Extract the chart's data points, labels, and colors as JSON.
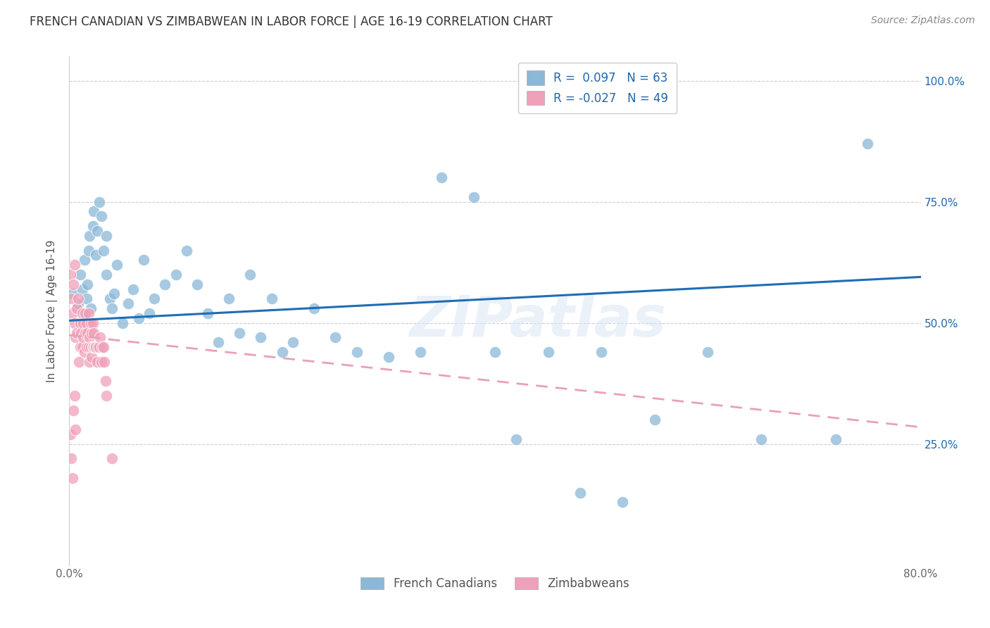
{
  "title": "FRENCH CANADIAN VS ZIMBABWEAN IN LABOR FORCE | AGE 16-19 CORRELATION CHART",
  "source": "Source: ZipAtlas.com",
  "ylabel": "In Labor Force | Age 16-19",
  "xlim": [
    0.0,
    0.8
  ],
  "ylim": [
    0.0,
    1.05
  ],
  "xtick_vals": [
    0.0,
    0.1,
    0.2,
    0.3,
    0.4,
    0.5,
    0.6,
    0.7,
    0.8
  ],
  "xtick_labels": [
    "0.0%",
    "",
    "",
    "",
    "",
    "",
    "",
    "",
    "80.0%"
  ],
  "ytick_vals": [
    1.0,
    0.75,
    0.5,
    0.25,
    0.0
  ],
  "ytick_labels_right": [
    "100.0%",
    "75.0%",
    "50.0%",
    "25.0%",
    ""
  ],
  "blue_color": "#8ab8d8",
  "pink_color": "#f0a0b8",
  "blue_line_color": "#1f6db5",
  "pink_line_color": "#e8a0b8",
  "legend_r_blue": "R =  0.097",
  "legend_n_blue": "N = 63",
  "legend_r_pink": "R = -0.027",
  "legend_n_pink": "N = 49",
  "watermark": "ZIPatlas",
  "blue_scatter_x": [
    0.003,
    0.008,
    0.01,
    0.012,
    0.014,
    0.015,
    0.016,
    0.017,
    0.018,
    0.018,
    0.019,
    0.02,
    0.022,
    0.023,
    0.025,
    0.026,
    0.028,
    0.03,
    0.032,
    0.035,
    0.035,
    0.038,
    0.04,
    0.042,
    0.045,
    0.05,
    0.055,
    0.06,
    0.065,
    0.07,
    0.075,
    0.08,
    0.09,
    0.1,
    0.11,
    0.12,
    0.13,
    0.14,
    0.15,
    0.16,
    0.17,
    0.18,
    0.19,
    0.2,
    0.21,
    0.23,
    0.25,
    0.27,
    0.3,
    0.33,
    0.35,
    0.38,
    0.4,
    0.42,
    0.45,
    0.48,
    0.5,
    0.52,
    0.55,
    0.6,
    0.65,
    0.72,
    0.75
  ],
  "blue_scatter_y": [
    0.56,
    0.54,
    0.6,
    0.57,
    0.63,
    0.52,
    0.55,
    0.58,
    0.5,
    0.65,
    0.68,
    0.53,
    0.7,
    0.73,
    0.64,
    0.69,
    0.75,
    0.72,
    0.65,
    0.6,
    0.68,
    0.55,
    0.53,
    0.56,
    0.62,
    0.5,
    0.54,
    0.57,
    0.51,
    0.63,
    0.52,
    0.55,
    0.58,
    0.6,
    0.65,
    0.58,
    0.52,
    0.46,
    0.55,
    0.48,
    0.6,
    0.47,
    0.55,
    0.44,
    0.46,
    0.53,
    0.47,
    0.44,
    0.43,
    0.44,
    0.8,
    0.76,
    0.44,
    0.26,
    0.44,
    0.15,
    0.44,
    0.13,
    0.3,
    0.44,
    0.26,
    0.26,
    0.87
  ],
  "pink_scatter_x": [
    0.001,
    0.002,
    0.003,
    0.004,
    0.005,
    0.005,
    0.006,
    0.007,
    0.007,
    0.008,
    0.009,
    0.01,
    0.01,
    0.011,
    0.012,
    0.012,
    0.013,
    0.013,
    0.014,
    0.015,
    0.015,
    0.016,
    0.016,
    0.017,
    0.018,
    0.018,
    0.019,
    0.019,
    0.02,
    0.02,
    0.021,
    0.021,
    0.022,
    0.022,
    0.023,
    0.023,
    0.024,
    0.025,
    0.026,
    0.027,
    0.028,
    0.029,
    0.03,
    0.031,
    0.032,
    0.033,
    0.034,
    0.035,
    0.04
  ],
  "pink_scatter_y": [
    0.6,
    0.55,
    0.52,
    0.58,
    0.62,
    0.5,
    0.47,
    0.53,
    0.48,
    0.55,
    0.42,
    0.5,
    0.45,
    0.48,
    0.52,
    0.45,
    0.5,
    0.47,
    0.44,
    0.48,
    0.52,
    0.45,
    0.5,
    0.48,
    0.45,
    0.52,
    0.42,
    0.47,
    0.45,
    0.5,
    0.48,
    0.43,
    0.45,
    0.5,
    0.45,
    0.48,
    0.45,
    0.45,
    0.42,
    0.45,
    0.45,
    0.47,
    0.42,
    0.45,
    0.45,
    0.42,
    0.38,
    0.35,
    0.22
  ],
  "pink_low_x": [
    0.001,
    0.002,
    0.003,
    0.004,
    0.005,
    0.006
  ],
  "pink_low_y": [
    0.27,
    0.22,
    0.18,
    0.32,
    0.35,
    0.28
  ],
  "blue_trend_x": [
    0.0,
    0.8
  ],
  "blue_trend_y": [
    0.505,
    0.595
  ],
  "pink_trend_x": [
    0.0,
    0.8
  ],
  "pink_trend_y": [
    0.475,
    0.285
  ]
}
